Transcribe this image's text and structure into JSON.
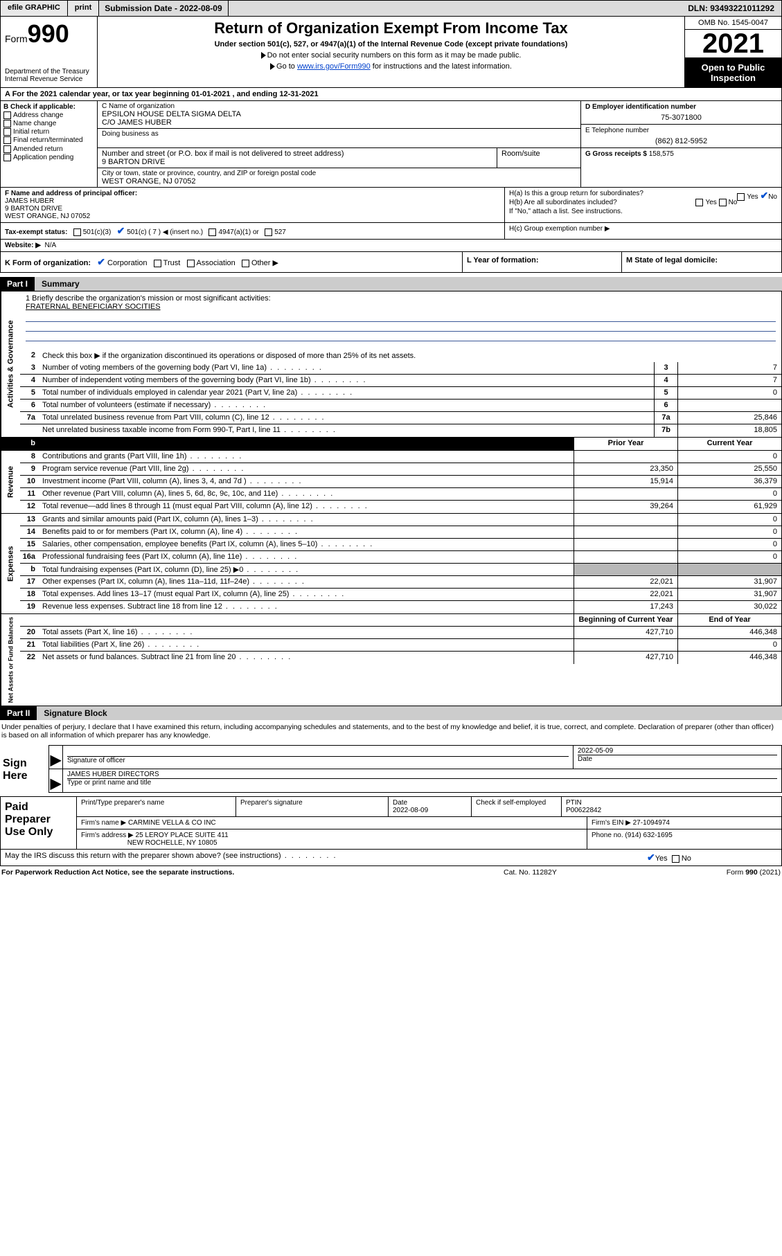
{
  "topbar": {
    "efile": "efile GRAPHIC",
    "print": "print",
    "subdate_label": "Submission Date - 2022-08-09",
    "dln": "DLN: 93493221011292"
  },
  "header": {
    "form_label": "Form",
    "form_num": "990",
    "title": "Return of Organization Exempt From Income Tax",
    "sub1": "Under section 501(c), 527, or 4947(a)(1) of the Internal Revenue Code (except private foundations)",
    "sub2": "Do not enter social security numbers on this form as it may be made public.",
    "sub3_pre": "Go to ",
    "sub3_link": "www.irs.gov/Form990",
    "sub3_post": " for instructions and the latest information.",
    "dept": "Department of the Treasury\nInternal Revenue Service",
    "omb": "OMB No. 1545-0047",
    "year": "2021",
    "openpub": "Open to Public Inspection"
  },
  "lineA": "A  For the 2021 calendar year, or tax year beginning 01-01-2021   , and ending 12-31-2021",
  "boxB": {
    "head": "B Check if applicable:",
    "opts": [
      "Address change",
      "Name change",
      "Initial return",
      "Final return/terminated",
      "Amended return",
      "Application pending"
    ]
  },
  "boxC": {
    "name_lab": "C Name of organization",
    "name1": "EPSILON HOUSE DELTA SIGMA DELTA",
    "name2": "C/O JAMES HUBER",
    "dba_lab": "Doing business as",
    "addr_lab": "Number and street (or P.O. box if mail is not delivered to street address)",
    "room_lab": "Room/suite",
    "addr": "9 BARTON DRIVE",
    "city_lab": "City or town, state or province, country, and ZIP or foreign postal code",
    "city": "WEST ORANGE, NJ  07052"
  },
  "boxD": {
    "lab": "D Employer identification number",
    "val": "75-3071800"
  },
  "boxE": {
    "lab": "E Telephone number",
    "val": "(862) 812-5952"
  },
  "boxG": {
    "lab": "G Gross receipts $",
    "val": "158,575"
  },
  "boxF": {
    "lab": "F  Name and address of principal officer:",
    "l1": "JAMES HUBER",
    "l2": "9 BARTON DRIVE",
    "l3": "WEST ORANGE, NJ  07052"
  },
  "boxH": {
    "a": "H(a)  Is this a group return for subordinates?",
    "b": "H(b)  Are all subordinates included?",
    "note": "If \"No,\" attach a list. See instructions.",
    "c": "H(c)  Group exemption number ▶",
    "yes": "Yes",
    "no": "No"
  },
  "boxI": {
    "lab": "Tax-exempt status:",
    "o1": "501(c)(3)",
    "o2": "501(c) ( 7 ) ◀ (insert no.)",
    "o3": "4947(a)(1) or",
    "o4": "527"
  },
  "boxJ": {
    "lab": "Website: ▶",
    "val": "N/A"
  },
  "boxK": {
    "lab": "K Form of organization:",
    "o1": "Corporation",
    "o2": "Trust",
    "o3": "Association",
    "o4": "Other ▶"
  },
  "boxL": "L Year of formation:",
  "boxM": "M State of legal domicile:",
  "partI": {
    "tag": "Part I",
    "title": "Summary"
  },
  "summary": {
    "mission_lab": "1  Briefly describe the organization's mission or most significant activities:",
    "mission": "FRATERNAL BENEFICIARY SOCITIES",
    "l2": "Check this box ▶        if the organization discontinued its operations or disposed of more than 25% of its net assets.",
    "rows_gov": [
      {
        "n": "3",
        "d": "Number of voting members of the governing body (Part VI, line 1a)",
        "box": "3",
        "v": "7"
      },
      {
        "n": "4",
        "d": "Number of independent voting members of the governing body (Part VI, line 1b)",
        "box": "4",
        "v": "7"
      },
      {
        "n": "5",
        "d": "Total number of individuals employed in calendar year 2021 (Part V, line 2a)",
        "box": "5",
        "v": "0"
      },
      {
        "n": "6",
        "d": "Total number of volunteers (estimate if necessary)",
        "box": "6",
        "v": ""
      },
      {
        "n": "7a",
        "d": "Total unrelated business revenue from Part VIII, column (C), line 12",
        "box": "7a",
        "v": "25,846"
      },
      {
        "n": "",
        "d": "Net unrelated business taxable income from Form 990-T, Part I, line 11",
        "box": "7b",
        "v": "18,805"
      }
    ],
    "hdrb": "b",
    "hdr_prior": "Prior Year",
    "hdr_curr": "Current Year",
    "rows_rev": [
      {
        "n": "8",
        "d": "Contributions and grants (Part VIII, line 1h)",
        "p": "",
        "c": "0"
      },
      {
        "n": "9",
        "d": "Program service revenue (Part VIII, line 2g)",
        "p": "23,350",
        "c": "25,550"
      },
      {
        "n": "10",
        "d": "Investment income (Part VIII, column (A), lines 3, 4, and 7d )",
        "p": "15,914",
        "c": "36,379"
      },
      {
        "n": "11",
        "d": "Other revenue (Part VIII, column (A), lines 5, 6d, 8c, 9c, 10c, and 11e)",
        "p": "",
        "c": "0"
      },
      {
        "n": "12",
        "d": "Total revenue—add lines 8 through 11 (must equal Part VIII, column (A), line 12)",
        "p": "39,264",
        "c": "61,929"
      }
    ],
    "rows_exp": [
      {
        "n": "13",
        "d": "Grants and similar amounts paid (Part IX, column (A), lines 1–3)",
        "p": "",
        "c": "0"
      },
      {
        "n": "14",
        "d": "Benefits paid to or for members (Part IX, column (A), line 4)",
        "p": "",
        "c": "0"
      },
      {
        "n": "15",
        "d": "Salaries, other compensation, employee benefits (Part IX, column (A), lines 5–10)",
        "p": "",
        "c": "0"
      },
      {
        "n": "16a",
        "d": "Professional fundraising fees (Part IX, column (A), line 11e)",
        "p": "",
        "c": "0"
      },
      {
        "n": "b",
        "d": "Total fundraising expenses (Part IX, column (D), line 25) ▶0",
        "p": "shade",
        "c": "shade"
      },
      {
        "n": "17",
        "d": "Other expenses (Part IX, column (A), lines 11a–11d, 11f–24e)",
        "p": "22,021",
        "c": "31,907"
      },
      {
        "n": "18",
        "d": "Total expenses. Add lines 13–17 (must equal Part IX, column (A), line 25)",
        "p": "22,021",
        "c": "31,907"
      },
      {
        "n": "19",
        "d": "Revenue less expenses. Subtract line 18 from line 12",
        "p": "17,243",
        "c": "30,022"
      }
    ],
    "hdr_beg": "Beginning of Current Year",
    "hdr_end": "End of Year",
    "rows_net": [
      {
        "n": "20",
        "d": "Total assets (Part X, line 16)",
        "p": "427,710",
        "c": "446,348"
      },
      {
        "n": "21",
        "d": "Total liabilities (Part X, line 26)",
        "p": "",
        "c": "0"
      },
      {
        "n": "22",
        "d": "Net assets or fund balances. Subtract line 21 from line 20",
        "p": "427,710",
        "c": "446,348"
      }
    ],
    "vtab_gov": "Activities & Governance",
    "vtab_rev": "Revenue",
    "vtab_exp": "Expenses",
    "vtab_net": "Net Assets or Fund Balances"
  },
  "partII": {
    "tag": "Part II",
    "title": "Signature Block"
  },
  "p2": {
    "decl": "Under penalties of perjury, I declare that I have examined this return, including accompanying schedules and statements, and to the best of my knowledge and belief, it is true, correct, and complete. Declaration of preparer (other than officer) is based on all information of which preparer has any knowledge.",
    "sign_here": "Sign Here",
    "sig_officer": "Signature of officer",
    "sig_date": "2022-05-09",
    "date_lab": "Date",
    "name_title": "JAMES HUBER  DIRECTORS",
    "name_lab": "Type or print name and title",
    "paid": "Paid Preparer Use Only",
    "pt_name_lab": "Print/Type preparer's name",
    "pt_sig_lab": "Preparer's signature",
    "pt_date_lab": "Date",
    "pt_date": "2022-08-09",
    "pt_check": "Check        if self-employed",
    "ptin_lab": "PTIN",
    "ptin": "P00622842",
    "firm_name_lab": "Firm's name    ▶",
    "firm_name": "CARMINE VELLA & CO INC",
    "firm_ein_lab": "Firm's EIN ▶",
    "firm_ein": "27-1094974",
    "firm_addr_lab": "Firm's address ▶",
    "firm_addr1": "25 LEROY PLACE SUITE 411",
    "firm_addr2": "NEW ROCHELLE, NY  10805",
    "phone_lab": "Phone no.",
    "phone": "(914) 632-1695",
    "mayirs": "May the IRS discuss this return with the preparer shown above? (see instructions)",
    "yes": "Yes",
    "no": "No"
  },
  "footer": {
    "l": "For Paperwork Reduction Act Notice, see the separate instructions.",
    "c": "Cat. No. 11282Y",
    "r": "Form 990 (2021)"
  },
  "colors": {
    "link": "#0040cc",
    "rule": "#3b5998",
    "shade": "#b8b8b8",
    "check": "#0050d0"
  }
}
